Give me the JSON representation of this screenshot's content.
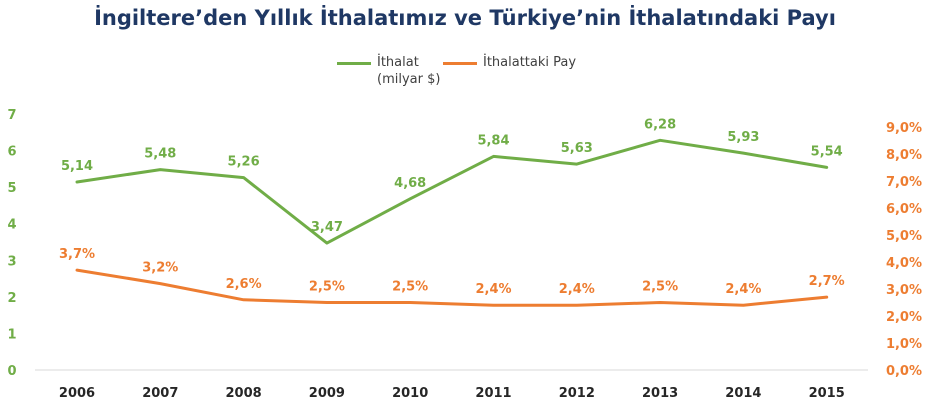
{
  "chart_data": {
    "type": "line",
    "title": "İngiltere’den Yıllık İthalatımız ve Türkiye’nin İthalatındaki Payı",
    "categories": [
      "2006",
      "2007",
      "2008",
      "2009",
      "2010",
      "2011",
      "2012",
      "2013",
      "2014",
      "2015"
    ],
    "series": [
      {
        "name": "İthalat\n(milyar $)",
        "axis": "left",
        "color": "#70ad47",
        "values": [
          5.14,
          5.48,
          5.26,
          3.47,
          4.68,
          5.84,
          5.63,
          6.28,
          5.93,
          5.54
        ],
        "labels": [
          "5,14",
          "5,48",
          "5,26",
          "3,47",
          "4,68",
          "5,84",
          "5,63",
          "6,28",
          "5,93",
          "5,54"
        ]
      },
      {
        "name": "İthalattaki Pay",
        "axis": "right",
        "color": "#ed7d31",
        "values": [
          3.7,
          3.2,
          2.6,
          2.5,
          2.5,
          2.4,
          2.4,
          2.5,
          2.4,
          2.7
        ],
        "labels": [
          "3,7%",
          "3,2%",
          "2,6%",
          "2,5%",
          "2,5%",
          "2,4%",
          "2,4%",
          "2,5%",
          "2,4%",
          "2,7%"
        ]
      }
    ],
    "y_left": {
      "ylim": [
        0,
        7
      ],
      "ticks": [
        "0",
        "1",
        "2",
        "3",
        "4",
        "5",
        "6",
        "7"
      ],
      "color": "#70ad47"
    },
    "y_right": {
      "ylim": [
        0,
        9.5
      ],
      "ticks": [
        "0,0%",
        "1,0%",
        "2,0%",
        "3,0%",
        "4,0%",
        "5,0%",
        "6,0%",
        "7,0%",
        "8,0%",
        "9,0%"
      ],
      "color": "#ed7d31"
    },
    "legend_position": "top-center",
    "grid": false
  }
}
